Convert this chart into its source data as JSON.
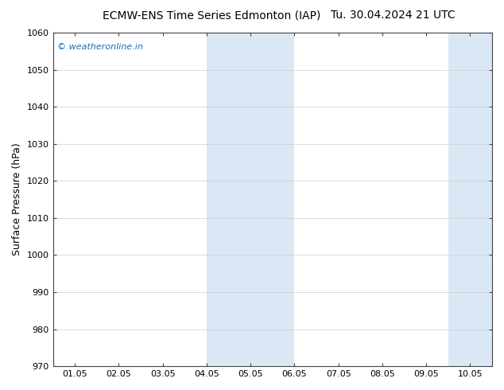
{
  "title_left": "ECMW-ENS Time Series Edmonton (IAP)",
  "title_right": "Tu. 30.04.2024 21 UTC",
  "ylabel": "Surface Pressure (hPa)",
  "ylim": [
    970,
    1060
  ],
  "yticks": [
    970,
    980,
    990,
    1000,
    1010,
    1020,
    1030,
    1040,
    1050,
    1060
  ],
  "xlim_start": -0.5,
  "xlim_end": 9.5,
  "xtick_labels": [
    "01.05",
    "02.05",
    "03.05",
    "04.05",
    "05.05",
    "06.05",
    "07.05",
    "08.05",
    "09.05",
    "10.05"
  ],
  "xtick_positions": [
    0,
    1,
    2,
    3,
    4,
    5,
    6,
    7,
    8,
    9
  ],
  "shaded_regions": [
    {
      "xmin": 3.0,
      "xmax": 5.0,
      "color": "#dae8f5"
    },
    {
      "xmin": 8.5,
      "xmax": 9.5,
      "color": "#dae8f5"
    }
  ],
  "watermark_text": "© weatheronline.in",
  "watermark_color": "#1a6db5",
  "background_color": "#ffffff",
  "plot_bg_color": "#ffffff",
  "grid_color": "#cccccc",
  "title_fontsize": 10,
  "ylabel_fontsize": 9,
  "tick_fontsize": 8
}
